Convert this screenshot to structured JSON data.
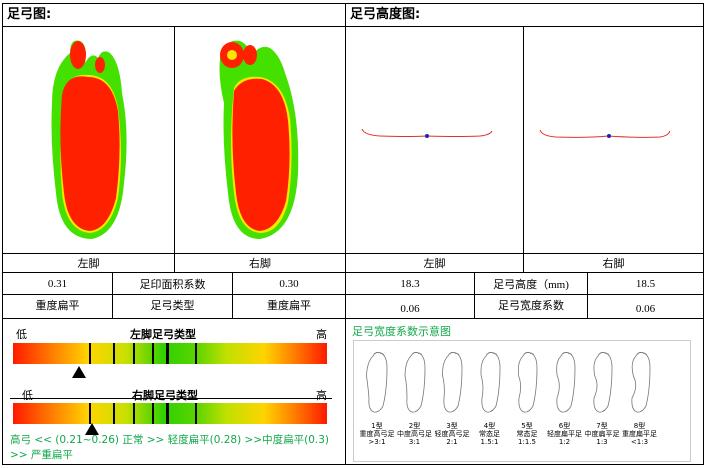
{
  "left_panel": {
    "title": "足弓图:",
    "left_foot_label": "左脚",
    "right_foot_label": "右脚"
  },
  "right_panel": {
    "title": "足弓高度图:",
    "left_foot_label": "左脚",
    "right_foot_label": "右脚"
  },
  "metrics_left": {
    "left_value": "0.31",
    "label": "足印面积系数",
    "right_value": "0.30",
    "left_type": "重度扁平",
    "type_label": "足弓类型",
    "right_type": "重度扁平"
  },
  "metrics_right": {
    "left_value": "18.3",
    "label": "足弓高度（mm)",
    "right_value": "18.5",
    "left_width": "0.06",
    "width_label": "足弓宽度系数",
    "right_width": "0.06"
  },
  "scale_left": {
    "low": "低",
    "title": "左脚足弓类型",
    "high": "高",
    "pointer_fraction": 0.21
  },
  "scale_right": {
    "low": "低",
    "title": "右脚足弓类型",
    "high": "高",
    "pointer_fraction": 0.25
  },
  "legend_text": "高弓 << (0.21~0.26) 正常 >> 轻度扁平(0.28) >>中度扁平(0.3) >> 严重扁平",
  "width_diagram": {
    "title": "足弓宽度系数示意图",
    "items": [
      {
        "type": "1型",
        "name": "重度高弓足",
        "ratio": ">3:1"
      },
      {
        "type": "2型",
        "name": "中度高弓足",
        "ratio": "3:1"
      },
      {
        "type": "3型",
        "name": "轻度高弓足",
        "ratio": "2:1"
      },
      {
        "type": "4型",
        "name": "常态足",
        "ratio": "1.5:1"
      },
      {
        "type": "5型",
        "name": "常态足",
        "ratio": "1:1.5"
      },
      {
        "type": "6型",
        "name": "轻度扁平足",
        "ratio": "1:2"
      },
      {
        "type": "7型",
        "name": "中度扁平足",
        "ratio": "1:3"
      },
      {
        "type": "8型",
        "name": "重度扁平足",
        "ratio": "<1:3"
      }
    ]
  },
  "colors": {
    "print_red": "#ff2000",
    "print_green": "#44e000",
    "legend_green": "#11a84b",
    "curve_red": "#e03030",
    "curve_dot": "#2020c0"
  }
}
